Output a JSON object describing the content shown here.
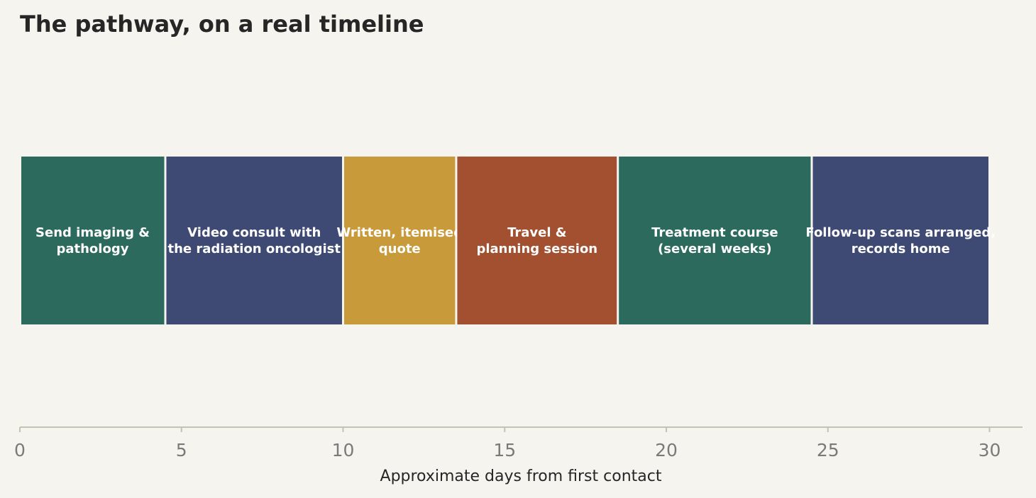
{
  "chart_data": {
    "type": "bar",
    "orientation": "horizontal-timeline",
    "title": "The pathway, on a real timeline",
    "xlabel": "Approximate days from first contact",
    "ylabel": "",
    "xlim": [
      0,
      31
    ],
    "xticks": [
      0,
      5,
      10,
      15,
      20,
      25,
      30
    ],
    "grid": false,
    "segments": [
      {
        "label": "Send imaging &\npathology",
        "start": 0,
        "end": 4.5,
        "color": "#2c6a5e"
      },
      {
        "label": "Video consult with\nthe radiation oncologist",
        "start": 4.5,
        "end": 10,
        "color": "#3e4a74"
      },
      {
        "label": "Written, itemised\nquote",
        "start": 10,
        "end": 13.5,
        "color": "#c89a3a"
      },
      {
        "label": "Travel &\nplanning session",
        "start": 13.5,
        "end": 18.5,
        "color": "#a25030"
      },
      {
        "label": "Treatment course\n(several weeks)",
        "start": 18.5,
        "end": 24.5,
        "color": "#2c6a5e"
      },
      {
        "label": "Follow-up scans arranged,\nrecords home",
        "start": 24.5,
        "end": 30,
        "color": "#3e4a74"
      }
    ]
  }
}
